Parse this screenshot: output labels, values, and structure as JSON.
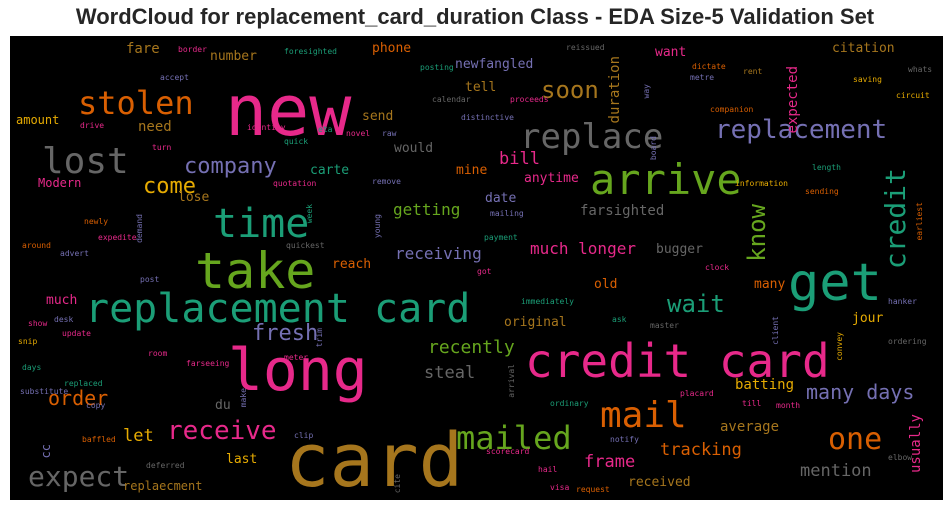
{
  "title": "WordCloud for replacement_card_duration Class - EDA Size-5 Validation Set",
  "words": [
    {
      "text": "new",
      "color": "#e7298a"
    },
    {
      "text": "card",
      "color": "#a6761d"
    },
    {
      "text": "credit card",
      "color": "#e7298a"
    },
    {
      "text": "long",
      "color": "#e7298a"
    },
    {
      "text": "replacement card",
      "color": "#1b9e77"
    },
    {
      "text": "take",
      "color": "#66a61e"
    },
    {
      "text": "get",
      "color": "#1b9e77"
    },
    {
      "text": "arrive",
      "color": "#66a61e"
    },
    {
      "text": "replace",
      "color": "#666666"
    },
    {
      "text": "time",
      "color": "#1b9e77"
    },
    {
      "text": "stolen",
      "color": "#d95f02"
    },
    {
      "text": "lost",
      "color": "#666666"
    },
    {
      "text": "replacement",
      "color": "#7570b3"
    },
    {
      "text": "mail",
      "color": "#d95f02"
    },
    {
      "text": "mailed",
      "color": "#66a61e"
    },
    {
      "text": "one",
      "color": "#d95f02"
    },
    {
      "text": "credit",
      "color": "#1b9e77"
    },
    {
      "text": "receive",
      "color": "#e7298a"
    },
    {
      "text": "expect",
      "color": "#666666"
    },
    {
      "text": "soon",
      "color": "#a6761d"
    },
    {
      "text": "know",
      "color": "#66a61e"
    },
    {
      "text": "wait",
      "color": "#1b9e77"
    },
    {
      "text": "company",
      "color": "#7570b3"
    },
    {
      "text": "come",
      "color": "#e6ab02"
    },
    {
      "text": "fresh",
      "color": "#7570b3"
    },
    {
      "text": "order",
      "color": "#d95f02"
    },
    {
      "text": "many days",
      "color": "#7570b3"
    },
    {
      "text": "recently",
      "color": "#66a61e"
    },
    {
      "text": "frame",
      "color": "#e7298a"
    },
    {
      "text": "tracking",
      "color": "#d95f02"
    },
    {
      "text": "mention",
      "color": "#666666"
    },
    {
      "text": "steal",
      "color": "#666666"
    },
    {
      "text": "bill",
      "color": "#e7298a"
    },
    {
      "text": "let",
      "color": "#e6ab02"
    },
    {
      "text": "much longer",
      "color": "#e7298a"
    },
    {
      "text": "receiving",
      "color": "#7570b3"
    },
    {
      "text": "getting",
      "color": "#66a61e"
    },
    {
      "text": "farsighted",
      "color": "#666666"
    },
    {
      "text": "batting",
      "color": "#e6ab02"
    },
    {
      "text": "average",
      "color": "#a6761d"
    },
    {
      "text": "expected",
      "color": "#e7298a"
    },
    {
      "text": "duration",
      "color": "#a6761d"
    },
    {
      "text": "usually",
      "color": "#e7298a"
    },
    {
      "text": "fare",
      "color": "#a6761d"
    },
    {
      "text": "number",
      "color": "#a6761d"
    },
    {
      "text": "phone",
      "color": "#d95f02"
    },
    {
      "text": "newfangled",
      "color": "#7570b3"
    },
    {
      "text": "tell",
      "color": "#a6761d"
    },
    {
      "text": "want",
      "color": "#e7298a"
    },
    {
      "text": "citation",
      "color": "#a6761d"
    },
    {
      "text": "need",
      "color": "#a6761d"
    },
    {
      "text": "amount",
      "color": "#e6ab02"
    },
    {
      "text": "send",
      "color": "#a6761d"
    },
    {
      "text": "would",
      "color": "#666666"
    },
    {
      "text": "mine",
      "color": "#d95f02"
    },
    {
      "text": "carte",
      "color": "#1b9e77"
    },
    {
      "text": "anytime",
      "color": "#e7298a"
    },
    {
      "text": "date",
      "color": "#7570b3"
    },
    {
      "text": "lose",
      "color": "#a6761d"
    },
    {
      "text": "Modern",
      "color": "#e7298a"
    },
    {
      "text": "reach",
      "color": "#d95f02"
    },
    {
      "text": "bugger",
      "color": "#666666"
    },
    {
      "text": "old",
      "color": "#d95f02"
    },
    {
      "text": "many",
      "color": "#d95f02"
    },
    {
      "text": "much",
      "color": "#e7298a"
    },
    {
      "text": "original",
      "color": "#a6761d"
    },
    {
      "text": "jour",
      "color": "#e6ab02"
    },
    {
      "text": "du",
      "color": "#666666"
    },
    {
      "text": "last",
      "color": "#e6ab02"
    },
    {
      "text": "received",
      "color": "#a6761d"
    },
    {
      "text": "replaecment",
      "color": "#a6761d"
    },
    {
      "text": "cc",
      "color": "#7570b3"
    },
    {
      "text": "border",
      "color": "#e7298a"
    },
    {
      "text": "foresighted",
      "color": "#1b9e77"
    },
    {
      "text": "reissued",
      "color": "#666666"
    },
    {
      "text": "dictate",
      "color": "#d95f02"
    },
    {
      "text": "metre",
      "color": "#7570b3"
    },
    {
      "text": "rent",
      "color": "#a6761d"
    },
    {
      "text": "saving",
      "color": "#e6ab02"
    },
    {
      "text": "whats",
      "color": "#666666"
    },
    {
      "text": "circuit",
      "color": "#e6ab02"
    },
    {
      "text": "accept",
      "color": "#7570b3"
    },
    {
      "text": "posting",
      "color": "#1b9e77"
    },
    {
      "text": "calendar",
      "color": "#666666"
    },
    {
      "text": "proceeds",
      "color": "#e7298a"
    },
    {
      "text": "way",
      "color": "#7570b3"
    },
    {
      "text": "companion",
      "color": "#d95f02"
    },
    {
      "text": "drive",
      "color": "#e7298a"
    },
    {
      "text": "identity",
      "color": "#e7298a"
    },
    {
      "text": "eta",
      "color": "#1b9e77"
    },
    {
      "text": "novel",
      "color": "#e7298a"
    },
    {
      "text": "raw",
      "color": "#7570b3"
    },
    {
      "text": "distinctive",
      "color": "#7570b3"
    },
    {
      "text": "quick",
      "color": "#1b9e77"
    },
    {
      "text": "turn",
      "color": "#e7298a"
    },
    {
      "text": "quotation",
      "color": "#e7298a"
    },
    {
      "text": "remove",
      "color": "#7570b3"
    },
    {
      "text": "board",
      "color": "#7570b3"
    },
    {
      "text": "length",
      "color": "#1b9e77"
    },
    {
      "text": "information",
      "color": "#e6ab02"
    },
    {
      "text": "sending",
      "color": "#d95f02"
    },
    {
      "text": "earliest",
      "color": "#d95f02"
    },
    {
      "text": "newly",
      "color": "#d95f02"
    },
    {
      "text": "demand",
      "color": "#7570b3"
    },
    {
      "text": "week",
      "color": "#1b9e77"
    },
    {
      "text": "mailing",
      "color": "#7570b3"
    },
    {
      "text": "expedite",
      "color": "#e7298a"
    },
    {
      "text": "young",
      "color": "#7570b3"
    },
    {
      "text": "payment",
      "color": "#1b9e77"
    },
    {
      "text": "around",
      "color": "#d95f02"
    },
    {
      "text": "advert",
      "color": "#7570b3"
    },
    {
      "text": "quickest",
      "color": "#666666"
    },
    {
      "text": "got",
      "color": "#e7298a"
    },
    {
      "text": "clock",
      "color": "#e7298a"
    },
    {
      "text": "post",
      "color": "#7570b3"
    },
    {
      "text": "immediately",
      "color": "#1b9e77"
    },
    {
      "text": "hanker",
      "color": "#7570b3"
    },
    {
      "text": "show",
      "color": "#e7298a"
    },
    {
      "text": "desk",
      "color": "#7570b3"
    },
    {
      "text": "update",
      "color": "#e7298a"
    },
    {
      "text": "ask",
      "color": "#1b9e77"
    },
    {
      "text": "master",
      "color": "#666666"
    },
    {
      "text": "snip",
      "color": "#e6ab02"
    },
    {
      "text": "trim",
      "color": "#7570b3"
    },
    {
      "text": "client",
      "color": "#7570b3"
    },
    {
      "text": "convey",
      "color": "#e6ab02"
    },
    {
      "text": "ordering",
      "color": "#666666"
    },
    {
      "text": "room",
      "color": "#e7298a"
    },
    {
      "text": "meter",
      "color": "#e7298a"
    },
    {
      "text": "days",
      "color": "#1b9e77"
    },
    {
      "text": "farseeing",
      "color": "#e7298a"
    },
    {
      "text": "replaced",
      "color": "#1b9e77"
    },
    {
      "text": "make",
      "color": "#7570b3"
    },
    {
      "text": "arrival",
      "color": "#666666"
    },
    {
      "text": "placard",
      "color": "#e7298a"
    },
    {
      "text": "substitute",
      "color": "#7570b3"
    },
    {
      "text": "copy",
      "color": "#7570b3"
    },
    {
      "text": "ordinary",
      "color": "#1b9e77"
    },
    {
      "text": "till",
      "color": "#e7298a"
    },
    {
      "text": "month",
      "color": "#e7298a"
    },
    {
      "text": "baffled",
      "color": "#d95f02"
    },
    {
      "text": "clip",
      "color": "#7570b3"
    },
    {
      "text": "notify",
      "color": "#7570b3"
    },
    {
      "text": "elbow",
      "color": "#666666"
    },
    {
      "text": "scorecard",
      "color": "#e7298a"
    },
    {
      "text": "hail",
      "color": "#e7298a"
    },
    {
      "text": "deferred",
      "color": "#666666"
    },
    {
      "text": "cite",
      "color": "#666666"
    },
    {
      "text": "visa",
      "color": "#e7298a"
    },
    {
      "text": "request",
      "color": "#d95f02"
    }
  ]
}
